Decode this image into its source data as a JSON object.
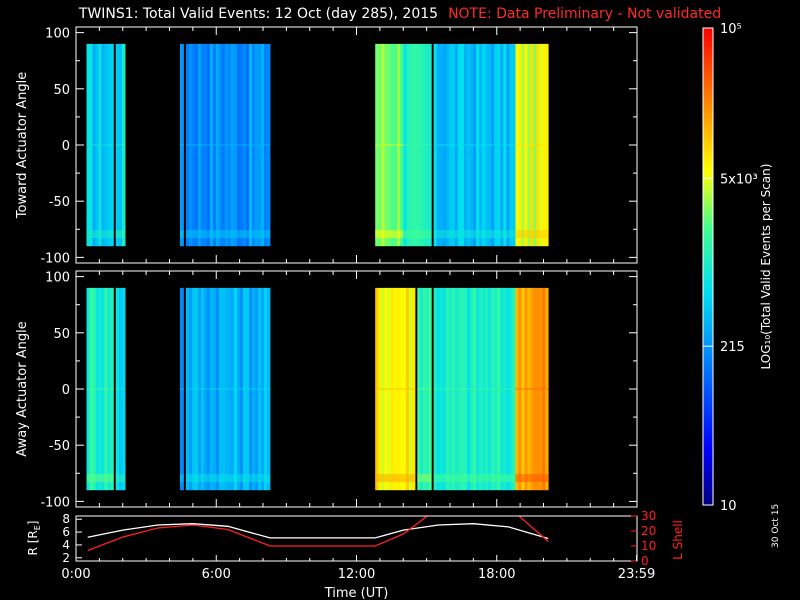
{
  "title": "TWINS1: Total Valid Events: 12 Oct (day 285), 2015",
  "note": "NOTE: Data Preliminary - Not validated",
  "datestamp": "30 Oct 15",
  "colors": {
    "background": "#000000",
    "axes": "#ffffff",
    "note": "#ff2a2a",
    "lshell": "#ff2020",
    "r_line": "#ffffff"
  },
  "chart_data": [
    {
      "type": "heatmap",
      "ylabel": "Toward Actuator Angle",
      "ylim": [
        -105,
        105
      ],
      "yticks": [
        "100",
        "50",
        "0",
        "-50",
        "-100"
      ],
      "xlim_hours": [
        0,
        24
      ],
      "data_range_deg": [
        -90,
        90
      ],
      "segments": [
        {
          "t0": 0.45,
          "t1": 1.6,
          "level": 0.42
        },
        {
          "t0": 1.7,
          "t1": 2.1,
          "level": 0.45
        },
        {
          "t0": 4.45,
          "t1": 4.6,
          "level": 0.35
        },
        {
          "t0": 4.7,
          "t1": 8.3,
          "level": 0.33
        },
        {
          "t0": 12.8,
          "t1": 14.0,
          "level": 0.62
        },
        {
          "t0": 14.0,
          "t1": 15.2,
          "level": 0.5
        },
        {
          "t0": 15.3,
          "t1": 18.8,
          "level": 0.4
        },
        {
          "t0": 18.8,
          "t1": 20.2,
          "level": 0.68
        }
      ]
    },
    {
      "type": "heatmap",
      "ylabel": "Away Actuator Angle",
      "ylim": [
        -105,
        105
      ],
      "yticks": [
        "100",
        "50",
        "0",
        "-50",
        "-100"
      ],
      "xlim_hours": [
        0,
        24
      ],
      "data_range_deg": [
        -90,
        90
      ],
      "segments": [
        {
          "t0": 0.45,
          "t1": 1.6,
          "level": 0.52
        },
        {
          "t0": 1.7,
          "t1": 2.1,
          "level": 0.45
        },
        {
          "t0": 4.45,
          "t1": 4.6,
          "level": 0.35
        },
        {
          "t0": 4.7,
          "t1": 8.3,
          "level": 0.38
        },
        {
          "t0": 12.8,
          "t1": 14.5,
          "level": 0.72
        },
        {
          "t0": 14.6,
          "t1": 15.2,
          "level": 0.55
        },
        {
          "t0": 15.3,
          "t1": 18.8,
          "level": 0.5
        },
        {
          "t0": 18.8,
          "t1": 20.2,
          "level": 0.82
        }
      ]
    },
    {
      "type": "line",
      "xlabel": "Time (UT)",
      "xticks": [
        "0:00",
        "6:00",
        "12:00",
        "18:00",
        "23:59"
      ],
      "xtick_hours": [
        0,
        6,
        12,
        18,
        23.98
      ],
      "ylabel_left": "R [R",
      "ylabel_left_sub": "E",
      "ylabel_left_end": "]",
      "ylabel_right": "L Shell",
      "y_left_ticks": [
        "8",
        "6",
        "4",
        "2"
      ],
      "y_left_range": [
        1.5,
        8.5
      ],
      "y_right_ticks": [
        "30",
        "20",
        "10",
        "0"
      ],
      "y_right_range": [
        0,
        30
      ],
      "series": [
        {
          "axis": "left",
          "x": [
            0.5,
            2,
            3.5,
            5,
            6.5,
            8.3,
            12.8,
            14,
            15.5,
            17,
            18.5,
            20.2
          ],
          "y": [
            5.2,
            6.3,
            7.1,
            7.3,
            6.9,
            5.1,
            5.1,
            6.3,
            7.1,
            7.3,
            6.8,
            5.0
          ]
        },
        {
          "axis": "right",
          "x": [
            0.5,
            2,
            3.5,
            5,
            6.5,
            8.3,
            8.3,
            12.8,
            12.8,
            14,
            15.2,
            18.8,
            20.2
          ],
          "y": [
            7,
            16,
            22,
            24,
            21,
            10,
            10,
            10,
            10,
            18,
            32,
            32,
            13
          ]
        }
      ]
    },
    {
      "type": "heatmap",
      "ylabel": "LOG₁₀(Total Valid Events per Scan)",
      "colorbar": true,
      "ticks": [
        {
          "label": "10",
          "pos": 0.0
        },
        {
          "label": "215",
          "pos": 0.333
        },
        {
          "label": "5x10³",
          "pos": 0.685
        },
        {
          "label": "10⁵",
          "pos": 1.0
        }
      ]
    }
  ]
}
